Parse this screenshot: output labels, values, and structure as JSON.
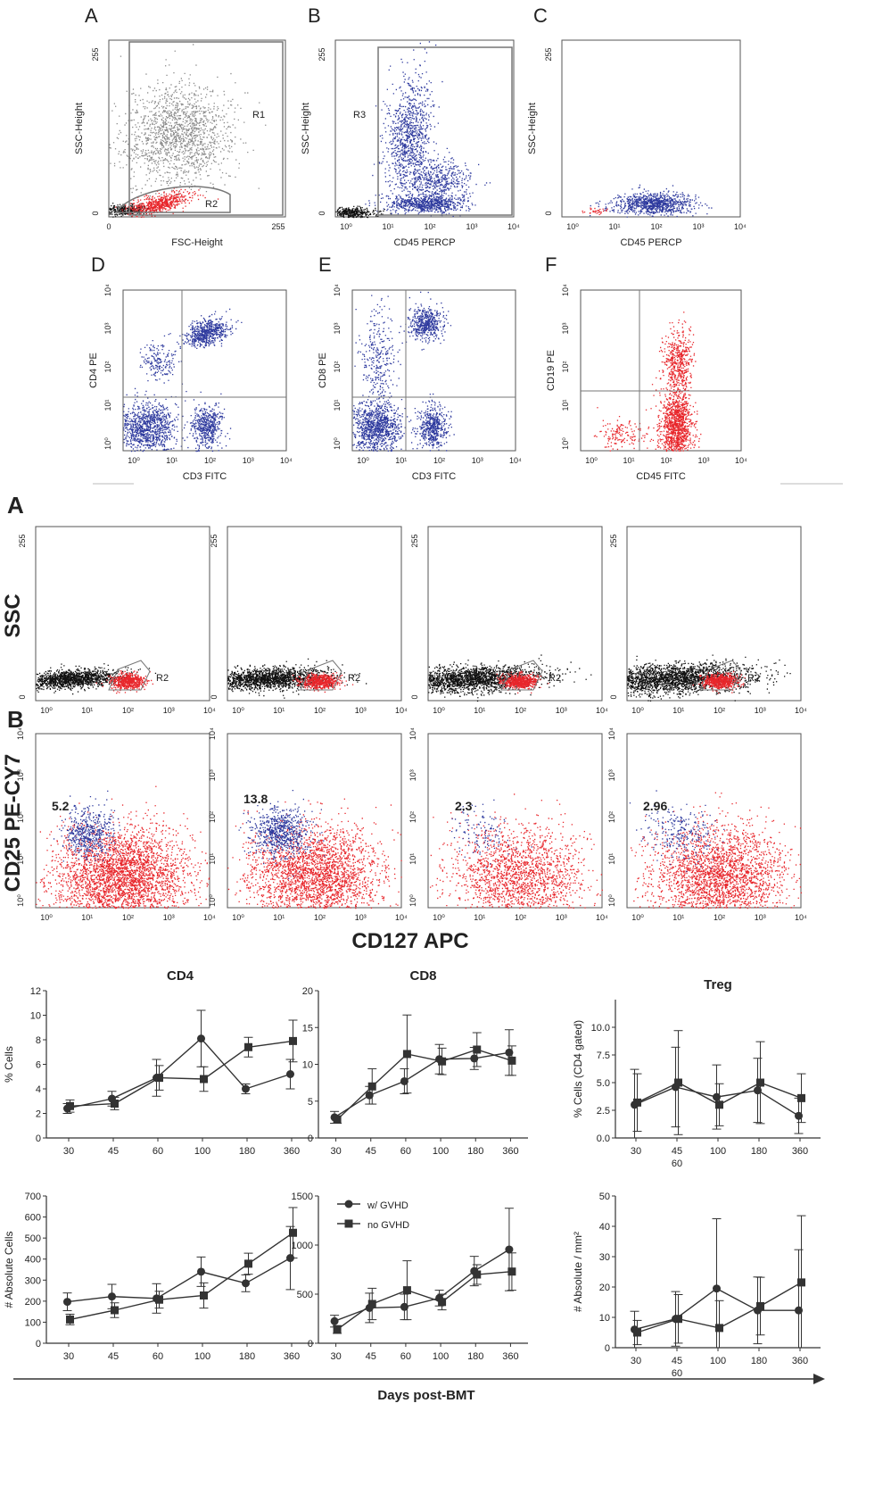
{
  "figure_1": {
    "panels": [
      {
        "letter": "A",
        "xlabel": "FSC-Height",
        "ylabel": "SSC-Height",
        "x_ticks": [
          "0",
          "255"
        ],
        "y_ticks": [
          "0",
          "255"
        ],
        "gates": [
          "R1",
          "R2"
        ]
      },
      {
        "letter": "B",
        "xlabel": "CD45 PERCP",
        "ylabel": "SSC-Height",
        "x_ticks": [
          "10⁰",
          "10¹",
          "10²",
          "10³",
          "10⁴"
        ],
        "y_ticks": [
          "0",
          "255"
        ],
        "gates": [
          "R3"
        ]
      },
      {
        "letter": "C",
        "xlabel": "CD45 PERCP",
        "ylabel": "SSC-Height",
        "x_ticks": [
          "10⁰",
          "10¹",
          "10²",
          "10³",
          "10⁴"
        ],
        "y_ticks": [
          "0",
          "255"
        ],
        "gates": []
      },
      {
        "letter": "D",
        "xlabel": "CD3 FITC",
        "ylabel": "CD4 PE",
        "x_ticks": [
          "10⁰",
          "10¹",
          "10²",
          "10³",
          "10⁴"
        ],
        "y_ticks": [
          "10⁰",
          "10¹",
          "10²",
          "10³",
          "10⁴"
        ],
        "gates": []
      },
      {
        "letter": "E",
        "xlabel": "CD3 FITC",
        "ylabel": "CD8 PE",
        "x_ticks": [
          "10⁰",
          "10¹",
          "10²",
          "10³",
          "10⁴"
        ],
        "y_ticks": [
          "10⁰",
          "10¹",
          "10²",
          "10³",
          "10⁴"
        ],
        "gates": []
      },
      {
        "letter": "F",
        "xlabel": "CD45 FITC",
        "ylabel": "CD19 PE",
        "x_ticks": [
          "10⁰",
          "10¹",
          "10²",
          "10³",
          "10⁴"
        ],
        "y_ticks": [
          "10⁰",
          "10¹",
          "10²",
          "10³",
          "10⁴"
        ],
        "gates": []
      }
    ]
  },
  "figure_2": {
    "row_a_letter": "A",
    "row_b_letter": "B",
    "row_a_ylabel": "SSC",
    "row_b_ylabel": "CD25 PE-CY7",
    "row_b_xlabel": "CD127 APC",
    "gate_label": "R2",
    "log_ticks": [
      "10⁰",
      "10¹",
      "10²",
      "10³",
      "10⁴"
    ],
    "ssc_ticks": [
      "0",
      "255"
    ],
    "treg_percentages": [
      "5.2",
      "13.8",
      "2.3",
      "2.96"
    ]
  },
  "figure_3": {
    "xlabel": "Days post-BMT",
    "legend": {
      "series_1": "w/ GVHD",
      "series_2": "no GVHD"
    },
    "colors": {
      "series": "#333333",
      "scatter_red": "#e8262b",
      "scatter_blue": "#2e3a9e",
      "scatter_grey": "#8a8a8a",
      "scatter_black": "#111111"
    }
  },
  "chart_data": [
    {
      "type": "line",
      "title": "CD4",
      "ylabel": "% Cells",
      "x": [
        "30",
        "45",
        "60",
        "100",
        "180",
        "360"
      ],
      "ylim": [
        0,
        12
      ],
      "yticks": [
        "0",
        "2",
        "4",
        "6",
        "8",
        "10",
        "12"
      ],
      "series": [
        {
          "name": "w/ GVHD",
          "marker": "circle",
          "values": [
            2.4,
            3.2,
            4.9,
            8.1,
            4.0,
            5.2
          ],
          "err": [
            0.4,
            0.6,
            1.5,
            2.3,
            0.4,
            1.2
          ]
        },
        {
          "name": "no GVHD",
          "marker": "square",
          "values": [
            2.6,
            2.8,
            4.9,
            4.8,
            7.4,
            7.9
          ],
          "err": [
            0.5,
            0.5,
            1.0,
            1.0,
            0.8,
            1.7
          ]
        }
      ]
    },
    {
      "type": "line",
      "title": "CD8",
      "ylabel": "",
      "x": [
        "30",
        "45",
        "60",
        "100",
        "180",
        "360"
      ],
      "ylim": [
        0,
        20
      ],
      "yticks": [
        "0",
        "5",
        "10",
        "15",
        "20"
      ],
      "series": [
        {
          "name": "w/ GVHD",
          "marker": "circle",
          "values": [
            2.8,
            5.8,
            7.7,
            10.7,
            10.8,
            11.6
          ],
          "err": [
            0.8,
            1.2,
            1.7,
            2.0,
            1.5,
            3.1
          ]
        },
        {
          "name": "no GVHD",
          "marker": "square",
          "values": [
            2.5,
            7.0,
            11.4,
            10.4,
            12.0,
            10.5
          ],
          "err": [
            0.5,
            2.4,
            5.3,
            1.8,
            2.3,
            2.0
          ]
        }
      ]
    },
    {
      "type": "line",
      "title": "Treg",
      "ylabel": "% Cells (CD4 gated)",
      "x": [
        "30",
        "45\n60",
        "100",
        "180",
        "360"
      ],
      "ylim": [
        0,
        12.5
      ],
      "yticks": [
        "0.0",
        "2.5",
        "5.0",
        "7.5",
        "10.0"
      ],
      "series": [
        {
          "name": "w/ GVHD",
          "marker": "circle",
          "values": [
            3.0,
            4.6,
            3.7,
            4.3,
            2.0
          ],
          "err": [
            3.2,
            3.6,
            2.9,
            2.9,
            1.6
          ]
        },
        {
          "name": "no GVHD",
          "marker": "square",
          "values": [
            3.2,
            5.0,
            3.0,
            5.0,
            3.6
          ],
          "err": [
            2.6,
            4.7,
            1.9,
            3.7,
            2.2
          ]
        }
      ]
    },
    {
      "type": "line",
      "title": "",
      "ylabel": "# Absolute Cells",
      "x": [
        "30",
        "45",
        "60",
        "100",
        "180",
        "360"
      ],
      "ylim": [
        0,
        700
      ],
      "yticks": [
        "0",
        "100",
        "200",
        "300",
        "400",
        "500",
        "600",
        "700"
      ],
      "series": [
        {
          "name": "w/ GVHD",
          "marker": "circle",
          "values": [
            197,
            222,
            213,
            340,
            285,
            405
          ],
          "err": [
            42,
            58,
            70,
            70,
            40,
            150
          ]
        },
        {
          "name": "no GVHD",
          "marker": "square",
          "values": [
            113,
            157,
            207,
            227,
            378,
            525
          ],
          "err": [
            25,
            35,
            40,
            60,
            50,
            120
          ]
        }
      ]
    },
    {
      "type": "line",
      "title": "",
      "ylabel": "",
      "x": [
        "30",
        "45",
        "60",
        "100",
        "180",
        "360"
      ],
      "ylim": [
        0,
        1500
      ],
      "yticks": [
        "0",
        "500",
        "1000",
        "1500"
      ],
      "series": [
        {
          "name": "w/ GVHD",
          "marker": "circle",
          "values": [
            225,
            360,
            370,
            460,
            735,
            955
          ],
          "err": [
            60,
            150,
            130,
            80,
            150,
            420
          ]
        },
        {
          "name": "no GVHD",
          "marker": "square",
          "values": [
            140,
            400,
            540,
            420,
            700,
            730
          ],
          "err": [
            40,
            160,
            300,
            80,
            100,
            190
          ]
        }
      ]
    },
    {
      "type": "line",
      "title": "",
      "ylabel": "# Absolute / mm²",
      "x": [
        "30",
        "45\n60",
        "100",
        "180",
        "360"
      ],
      "ylim": [
        0,
        50
      ],
      "yticks": [
        "0",
        "10",
        "20",
        "30",
        "40",
        "50"
      ],
      "series": [
        {
          "name": "w/ GVHD",
          "marker": "circle",
          "values": [
            6,
            9.5,
            19.5,
            12.3,
            12.3
          ],
          "err": [
            6,
            9,
            23,
            11,
            20
          ]
        },
        {
          "name": "no GVHD",
          "marker": "square",
          "values": [
            5,
            9.5,
            6.5,
            13.7,
            21.5
          ],
          "err": [
            4,
            8,
            9,
            9.5,
            22
          ]
        }
      ]
    }
  ]
}
